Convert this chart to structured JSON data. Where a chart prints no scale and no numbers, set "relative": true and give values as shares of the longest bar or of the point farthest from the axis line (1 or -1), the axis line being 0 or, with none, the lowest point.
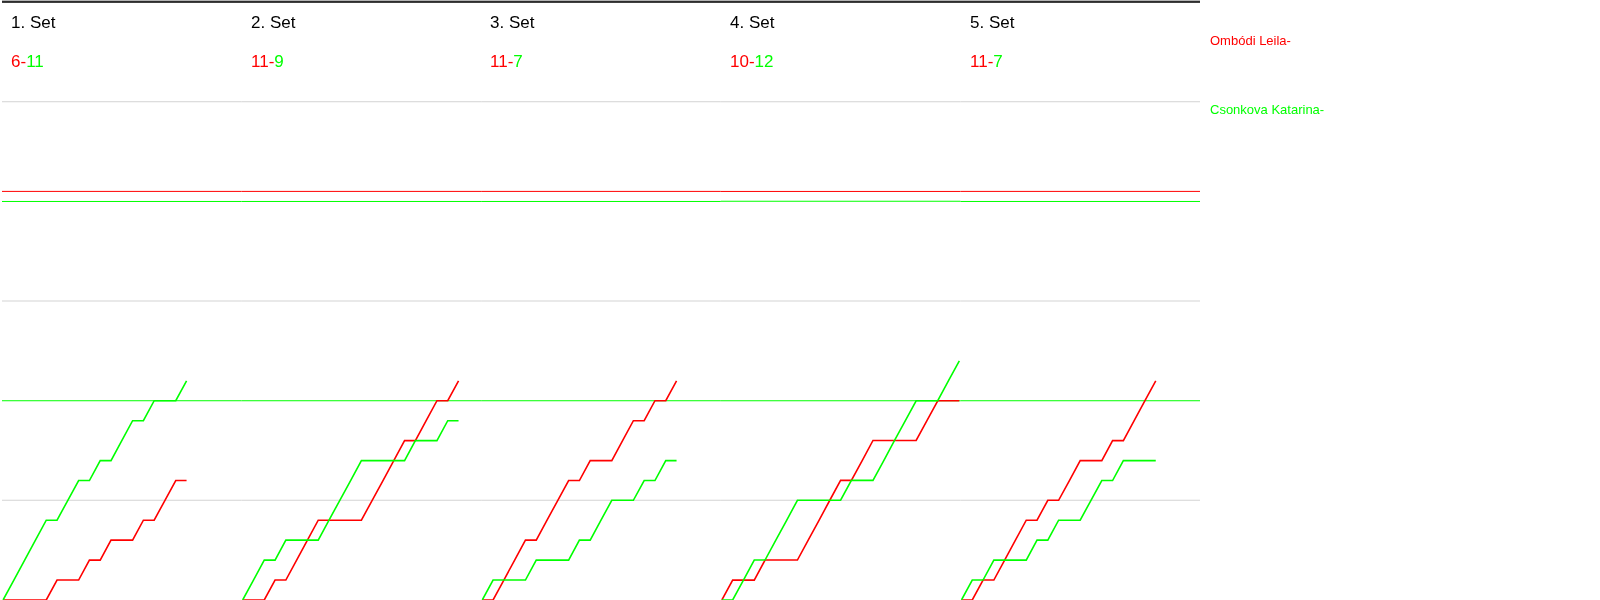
{
  "chart_data": [
    {
      "type": "line",
      "title": "1. Set",
      "annotations": [
        "6-",
        "11"
      ],
      "relative": true,
      "categories": [
        null,
        null,
        null,
        null,
        null,
        null,
        null,
        null,
        null,
        null,
        null,
        null,
        null,
        null,
        null,
        null,
        null,
        null,
        null,
        null,
        null,
        null,
        null
      ],
      "series": [
        {
          "color": "#ff0000",
          "values": [
            0,
            0,
            0,
            0,
            0,
            0.091,
            0.091,
            0.091,
            0.182,
            0.182,
            0.273,
            0.273,
            0.273,
            0.364,
            0.364,
            0.455,
            0.545,
            0.545,
            null,
            null,
            null,
            null,
            null
          ]
        },
        {
          "color": "#00ff00",
          "values": [
            0,
            0.091,
            0.182,
            0.273,
            0.364,
            0.364,
            0.455,
            0.545,
            0.545,
            0.636,
            0.636,
            0.727,
            0.818,
            0.818,
            0.909,
            0.909,
            0.909,
            1,
            null,
            null,
            null,
            null,
            null
          ]
        }
      ],
      "ref_lines": [
        {
          "axis": "y",
          "value": 0.455,
          "color": "#d3d3d3"
        },
        {
          "axis": "y",
          "value": 1.364,
          "color": "#d3d3d3"
        },
        {
          "axis": "y",
          "value": 2.273,
          "color": "#d3d3d3"
        },
        {
          "axis": "y",
          "value": 1.864,
          "color": "#ff0000"
        },
        {
          "axis": "y",
          "value": 1.818,
          "color": "#00ff00"
        },
        {
          "axis": "y",
          "value": 0.909,
          "color": "#00ff00"
        }
      ]
    },
    {
      "type": "line",
      "title": "2. Set",
      "annotations": [
        "11-",
        "9"
      ],
      "relative": true,
      "categories": [
        null,
        null,
        null,
        null,
        null,
        null,
        null,
        null,
        null,
        null,
        null,
        null,
        null,
        null,
        null,
        null,
        null,
        null,
        null,
        null,
        null,
        null,
        null
      ],
      "series": [
        {
          "color": "#ff0000",
          "values": [
            0,
            0,
            0,
            0.091,
            0.091,
            0.182,
            0.273,
            0.364,
            0.364,
            0.364,
            0.364,
            0.364,
            0.455,
            0.545,
            0.636,
            0.727,
            0.727,
            0.818,
            0.909,
            0.909,
            1,
            null,
            null
          ]
        },
        {
          "color": "#00ff00",
          "values": [
            0,
            0.091,
            0.182,
            0.182,
            0.273,
            0.273,
            0.273,
            0.273,
            0.364,
            0.455,
            0.545,
            0.636,
            0.636,
            0.636,
            0.636,
            0.636,
            0.727,
            0.727,
            0.727,
            0.818,
            0.818,
            null,
            null
          ]
        }
      ],
      "ref_lines": [
        {
          "axis": "y",
          "value": 0.455,
          "color": "#d3d3d3"
        },
        {
          "axis": "y",
          "value": 1.364,
          "color": "#d3d3d3"
        },
        {
          "axis": "y",
          "value": 2.273,
          "color": "#d3d3d3"
        },
        {
          "axis": "y",
          "value": 1.864,
          "color": "#ff0000"
        },
        {
          "axis": "y",
          "value": 1.818,
          "color": "#00ff00"
        },
        {
          "axis": "y",
          "value": 0.909,
          "color": "#00ff00"
        }
      ]
    },
    {
      "type": "line",
      "title": "3. Set",
      "annotations": [
        "11-",
        "7"
      ],
      "relative": true,
      "categories": [
        null,
        null,
        null,
        null,
        null,
        null,
        null,
        null,
        null,
        null,
        null,
        null,
        null,
        null,
        null,
        null,
        null,
        null,
        null,
        null,
        null,
        null,
        null
      ],
      "series": [
        {
          "color": "#ff0000",
          "values": [
            0,
            0,
            0.091,
            0.182,
            0.273,
            0.273,
            0.364,
            0.455,
            0.545,
            0.545,
            0.636,
            0.636,
            0.636,
            0.727,
            0.818,
            0.818,
            0.909,
            0.909,
            1,
            null,
            null,
            null,
            null
          ]
        },
        {
          "color": "#00ff00",
          "values": [
            0,
            0.091,
            0.091,
            0.091,
            0.091,
            0.182,
            0.182,
            0.182,
            0.182,
            0.273,
            0.273,
            0.364,
            0.455,
            0.455,
            0.455,
            0.545,
            0.545,
            0.636,
            0.636,
            null,
            null,
            null,
            null
          ]
        }
      ],
      "ref_lines": [
        {
          "axis": "y",
          "value": 0.455,
          "color": "#d3d3d3"
        },
        {
          "axis": "y",
          "value": 1.364,
          "color": "#d3d3d3"
        },
        {
          "axis": "y",
          "value": 2.273,
          "color": "#d3d3d3"
        },
        {
          "axis": "y",
          "value": 1.864,
          "color": "#ff0000"
        },
        {
          "axis": "y",
          "value": 1.818,
          "color": "#00ff00"
        },
        {
          "axis": "y",
          "value": 0.909,
          "color": "#00ff00"
        }
      ]
    },
    {
      "type": "line",
      "title": "4. Set",
      "annotations": [
        "10-",
        "12"
      ],
      "relative": true,
      "categories": [
        null,
        null,
        null,
        null,
        null,
        null,
        null,
        null,
        null,
        null,
        null,
        null,
        null,
        null,
        null,
        null,
        null,
        null,
        null,
        null,
        null,
        null,
        null
      ],
      "series": [
        {
          "color": "#ff0000",
          "values": [
            0,
            0.083,
            0.083,
            0.083,
            0.167,
            0.167,
            0.167,
            0.167,
            0.25,
            0.333,
            0.417,
            0.5,
            0.5,
            0.583,
            0.667,
            0.667,
            0.667,
            0.667,
            0.667,
            0.75,
            0.833,
            0.833,
            0.833
          ]
        },
        {
          "color": "#00ff00",
          "values": [
            0,
            0,
            0.083,
            0.167,
            0.167,
            0.25,
            0.333,
            0.417,
            0.417,
            0.417,
            0.417,
            0.417,
            0.5,
            0.5,
            0.5,
            0.583,
            0.667,
            0.75,
            0.833,
            0.833,
            0.833,
            0.917,
            1
          ]
        }
      ],
      "ref_lines": [
        {
          "axis": "y",
          "value": 0.417,
          "color": "#d3d3d3"
        },
        {
          "axis": "y",
          "value": 1.25,
          "color": "#d3d3d3"
        },
        {
          "axis": "y",
          "value": 2.083,
          "color": "#d3d3d3"
        },
        {
          "axis": "y",
          "value": 1.708,
          "color": "#ff0000"
        },
        {
          "axis": "y",
          "value": 1.667,
          "color": "#00ff00"
        },
        {
          "axis": "y",
          "value": 0.833,
          "color": "#00ff00"
        }
      ]
    },
    {
      "type": "line",
      "title": "5. Set",
      "annotations": [
        "11-",
        "7"
      ],
      "relative": true,
      "categories": [
        null,
        null,
        null,
        null,
        null,
        null,
        null,
        null,
        null,
        null,
        null,
        null,
        null,
        null,
        null,
        null,
        null,
        null,
        null,
        null,
        null,
        null,
        null
      ],
      "series": [
        {
          "name": "Ombódi Leila-",
          "color": "#ff0000",
          "values": [
            0,
            0,
            0.091,
            0.091,
            0.182,
            0.273,
            0.364,
            0.364,
            0.455,
            0.455,
            0.545,
            0.636,
            0.636,
            0.636,
            0.727,
            0.727,
            0.818,
            0.909,
            1,
            null,
            null,
            null,
            null
          ]
        },
        {
          "name": "Csonkova Katarina-",
          "color": "#00ff00",
          "values": [
            0,
            0.091,
            0.091,
            0.182,
            0.182,
            0.182,
            0.182,
            0.273,
            0.273,
            0.364,
            0.364,
            0.364,
            0.455,
            0.545,
            0.545,
            0.636,
            0.636,
            0.636,
            0.636,
            null,
            null,
            null,
            null
          ]
        }
      ],
      "ref_lines": [
        {
          "axis": "y",
          "value": 0.455,
          "color": "#d3d3d3"
        },
        {
          "axis": "y",
          "value": 1.364,
          "color": "#d3d3d3"
        },
        {
          "axis": "y",
          "value": 2.273,
          "color": "#d3d3d3"
        },
        {
          "axis": "y",
          "value": 1.864,
          "color": "#ff0000"
        },
        {
          "axis": "y",
          "value": 1.818,
          "color": "#00ff00"
        },
        {
          "axis": "y",
          "value": 0.909,
          "color": "#00ff00"
        }
      ]
    }
  ]
}
